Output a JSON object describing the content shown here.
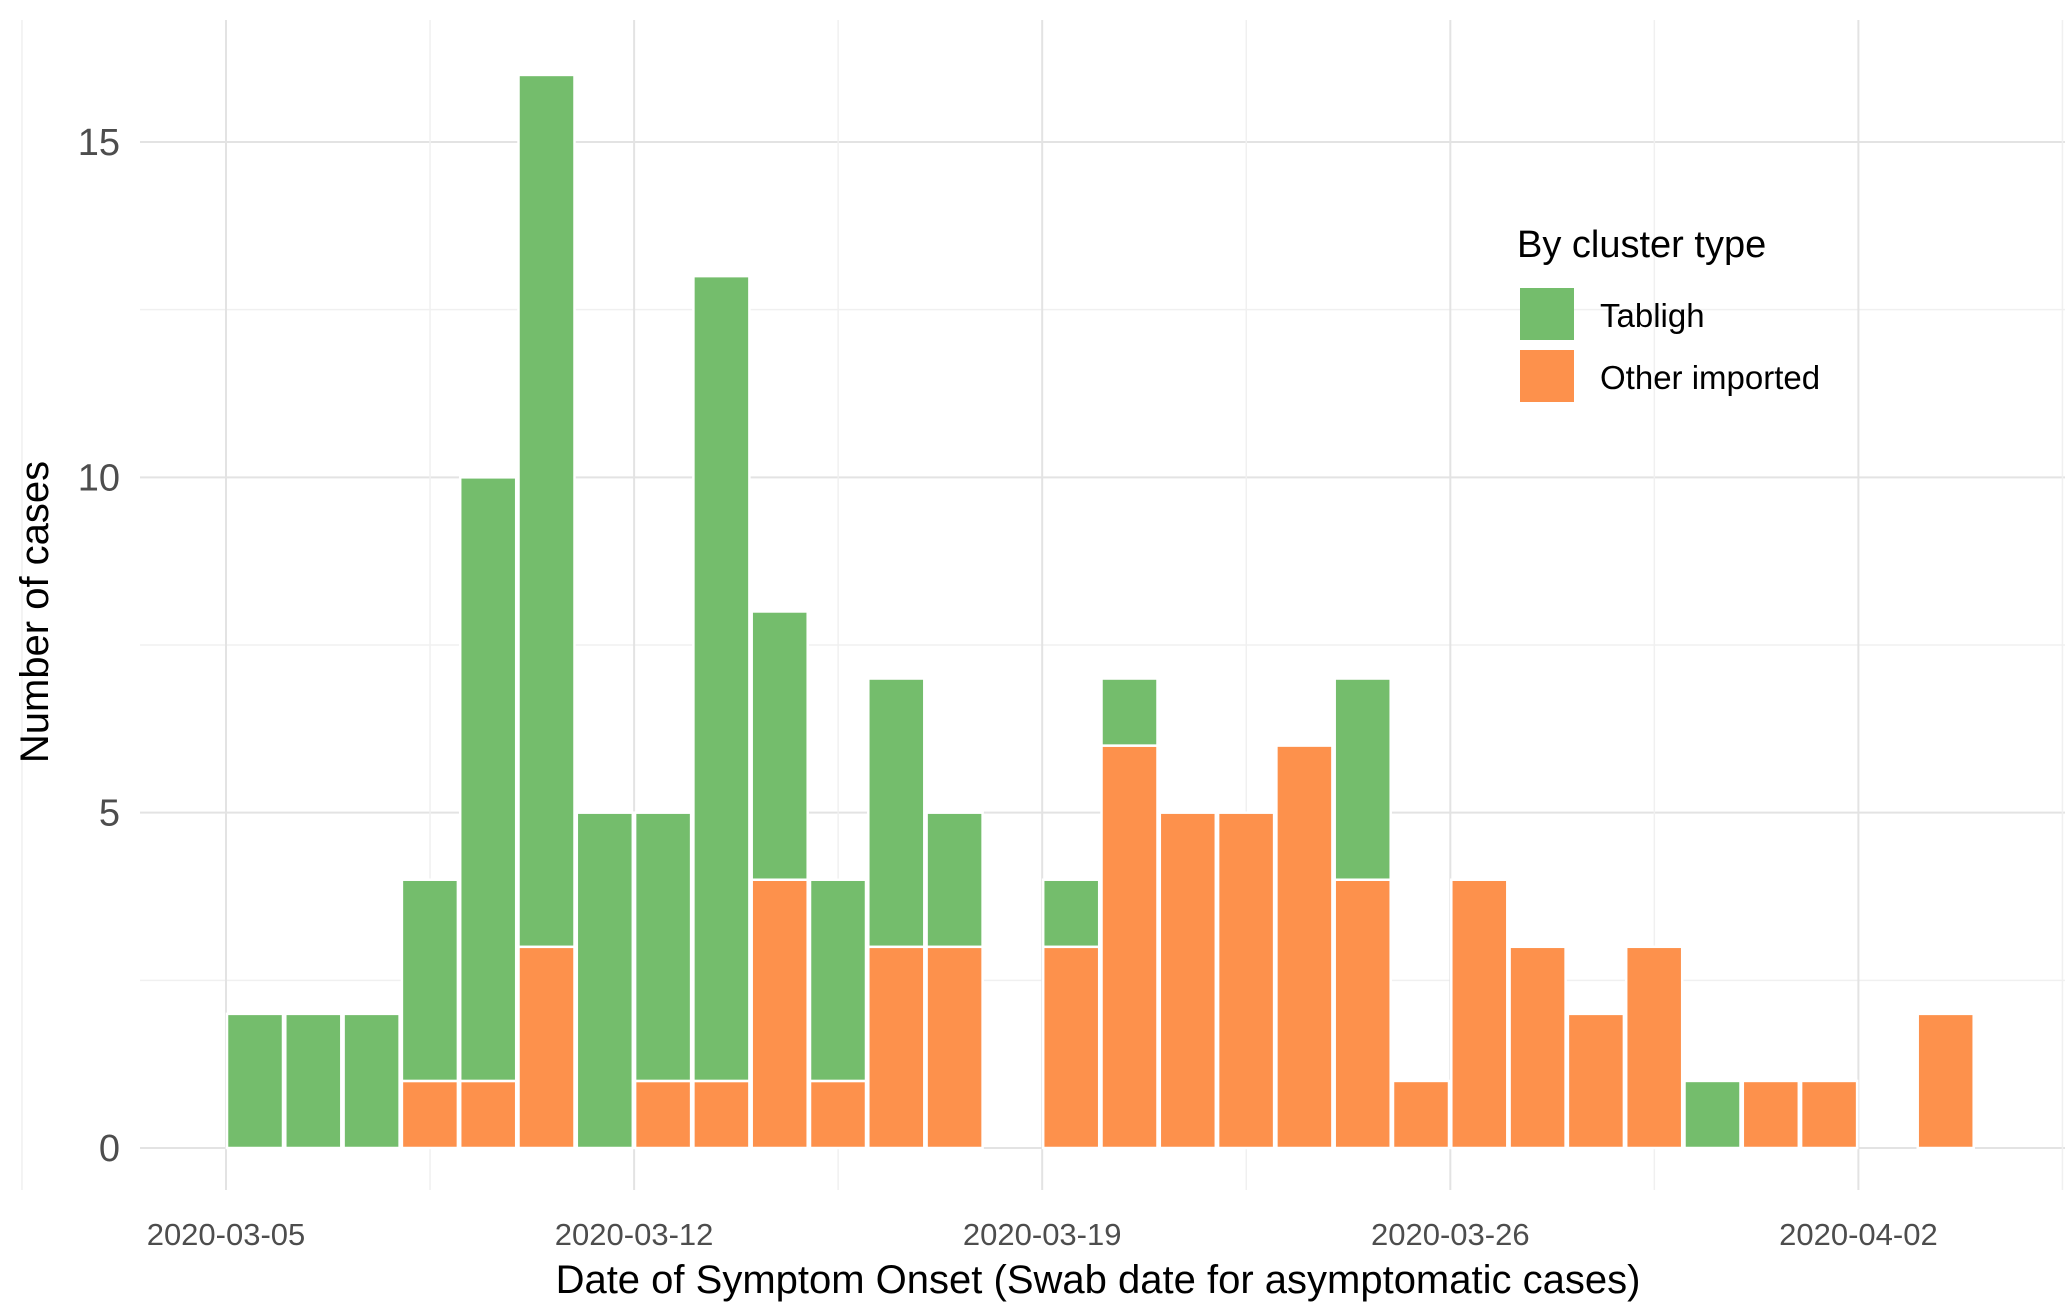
{
  "chart_data": {
    "type": "bar",
    "stacked": true,
    "xlabel": "Date of Symptom Onset (Swab date for asymptomatic cases)",
    "ylabel": "Number of cases",
    "x_ticks": [
      "2020-03-05",
      "2020-03-12",
      "2020-03-19",
      "2020-03-26",
      "2020-04-02"
    ],
    "y_ticks": [
      0,
      5,
      10,
      15
    ],
    "ylim": [
      0,
      16
    ],
    "grid": true,
    "legend": {
      "title": "By cluster type",
      "position": "top-right"
    },
    "categories": [
      "2020-03-05",
      "2020-03-06",
      "2020-03-07",
      "2020-03-08",
      "2020-03-09",
      "2020-03-10",
      "2020-03-11",
      "2020-03-12",
      "2020-03-13",
      "2020-03-14",
      "2020-03-15",
      "2020-03-16",
      "2020-03-17",
      "2020-03-19",
      "2020-03-20",
      "2020-03-21",
      "2020-03-22",
      "2020-03-23",
      "2020-03-24",
      "2020-03-25",
      "2020-03-26",
      "2020-03-27",
      "2020-03-28",
      "2020-03-29",
      "2020-03-30",
      "2020-03-31",
      "2020-04-01",
      "2020-04-03"
    ],
    "series": [
      {
        "name": "Tabligh",
        "color": "#74bd6c",
        "values": [
          2,
          2,
          2,
          3,
          9,
          13,
          5,
          4,
          12,
          4,
          3,
          4,
          2,
          1,
          1,
          0,
          0,
          0,
          3,
          0,
          0,
          0,
          0,
          0,
          1,
          0,
          0,
          0
        ]
      },
      {
        "name": "Other imported",
        "color": "#fd914c",
        "values": [
          0,
          0,
          0,
          1,
          1,
          3,
          0,
          1,
          1,
          4,
          1,
          3,
          3,
          3,
          6,
          5,
          5,
          6,
          4,
          1,
          4,
          3,
          2,
          3,
          0,
          1,
          1,
          2
        ]
      }
    ]
  }
}
